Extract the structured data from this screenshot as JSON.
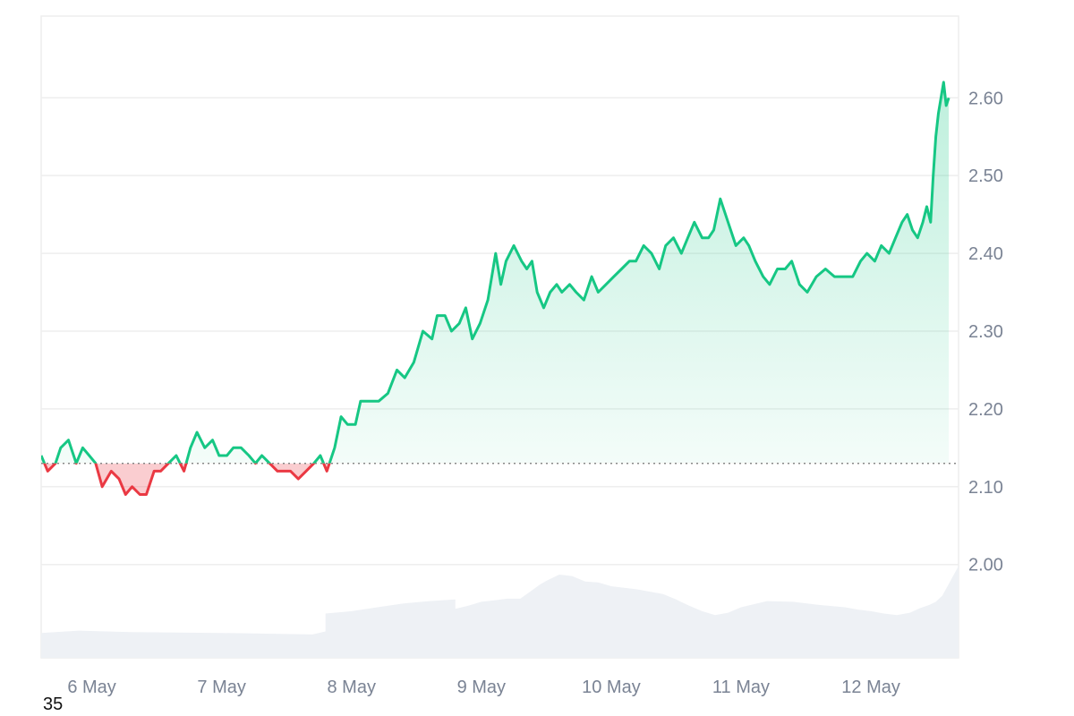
{
  "chart_data": {
    "type": "area",
    "baseline": 2.13,
    "ylim": [
      1.88,
      2.705
    ],
    "xlim": [
      5.61,
      12.675
    ],
    "x_unit": "day of May",
    "y_ticks": [
      "2.00",
      "2.10",
      "2.20",
      "2.30",
      "2.40",
      "2.50",
      "2.60"
    ],
    "x_ticks": [
      {
        "value": 6,
        "label": "6 May"
      },
      {
        "value": 7,
        "label": "7 May"
      },
      {
        "value": 8,
        "label": "8 May"
      },
      {
        "value": 9,
        "label": "9 May"
      },
      {
        "value": 10,
        "label": "10 May"
      },
      {
        "value": 11,
        "label": "11 May"
      },
      {
        "value": 12,
        "label": "12 May"
      }
    ],
    "grid": true,
    "colors": {
      "up": "#16c784",
      "down": "#ea3943",
      "volume": "#eef1f5",
      "grid": "#eeeeee",
      "baseline": "#888888"
    },
    "series": [
      {
        "type": "line",
        "x": [
          5.61,
          5.66,
          5.72,
          5.76,
          5.82,
          5.88,
          5.93,
          5.98,
          6.03,
          6.08,
          6.15,
          6.21,
          6.26,
          6.31,
          6.37,
          6.42,
          6.48,
          6.53,
          6.59,
          6.65,
          6.71,
          6.76,
          6.81,
          6.87,
          6.93,
          6.98,
          7.04,
          7.09,
          7.15,
          7.21,
          7.26,
          7.31,
          7.37,
          7.43,
          7.48,
          7.53,
          7.59,
          7.65,
          7.71,
          7.76,
          7.81,
          7.87,
          7.92,
          7.97,
          8.03,
          8.07,
          8.14,
          8.21,
          8.28,
          8.35,
          8.41,
          8.48,
          8.55,
          8.62,
          8.66,
          8.72,
          8.77,
          8.83,
          8.88,
          8.93,
          8.99,
          9.05,
          9.11,
          9.15,
          9.19,
          9.25,
          9.31,
          9.35,
          9.39,
          9.43,
          9.48,
          9.53,
          9.58,
          9.62,
          9.68,
          9.73,
          9.79,
          9.85,
          9.9,
          9.96,
          10.02,
          10.08,
          10.14,
          10.19,
          10.25,
          10.31,
          10.37,
          10.42,
          10.48,
          10.54,
          10.59,
          10.64,
          10.7,
          10.75,
          10.79,
          10.84,
          10.9,
          10.96,
          11.02,
          11.06,
          11.11,
          11.17,
          11.22,
          11.28,
          11.34,
          11.39,
          11.45,
          11.51,
          11.58,
          11.65,
          11.72,
          11.79,
          11.86,
          11.92,
          11.97,
          12.03,
          12.08,
          12.14,
          12.19,
          12.24,
          12.28,
          12.32,
          12.36,
          12.4,
          12.43,
          12.46,
          12.48,
          12.5,
          12.52,
          12.54,
          12.56,
          12.58,
          12.6
        ],
        "values": [
          2.14,
          2.12,
          2.13,
          2.15,
          2.16,
          2.13,
          2.15,
          2.14,
          2.13,
          2.1,
          2.12,
          2.11,
          2.09,
          2.1,
          2.09,
          2.09,
          2.12,
          2.12,
          2.13,
          2.14,
          2.12,
          2.15,
          2.17,
          2.15,
          2.16,
          2.14,
          2.14,
          2.15,
          2.15,
          2.14,
          2.13,
          2.14,
          2.13,
          2.12,
          2.12,
          2.12,
          2.11,
          2.12,
          2.13,
          2.14,
          2.12,
          2.15,
          2.19,
          2.18,
          2.18,
          2.21,
          2.21,
          2.21,
          2.22,
          2.25,
          2.24,
          2.26,
          2.3,
          2.29,
          2.32,
          2.32,
          2.3,
          2.31,
          2.33,
          2.29,
          2.31,
          2.34,
          2.4,
          2.36,
          2.39,
          2.41,
          2.39,
          2.38,
          2.39,
          2.35,
          2.33,
          2.35,
          2.36,
          2.35,
          2.36,
          2.35,
          2.34,
          2.37,
          2.35,
          2.36,
          2.37,
          2.38,
          2.39,
          2.39,
          2.41,
          2.4,
          2.38,
          2.41,
          2.42,
          2.4,
          2.42,
          2.44,
          2.42,
          2.42,
          2.43,
          2.47,
          2.44,
          2.41,
          2.42,
          2.41,
          2.39,
          2.37,
          2.36,
          2.38,
          2.38,
          2.39,
          2.36,
          2.35,
          2.37,
          2.38,
          2.37,
          2.37,
          2.37,
          2.39,
          2.4,
          2.39,
          2.41,
          2.4,
          2.42,
          2.44,
          2.45,
          2.43,
          2.42,
          2.44,
          2.46,
          2.44,
          2.5,
          2.55,
          2.58,
          2.6,
          2.62,
          2.59,
          2.6
        ]
      },
      {
        "type": "volume",
        "x": [
          5.61,
          5.9,
          6.3,
          7.0,
          7.7,
          7.8,
          7.8,
          8.0,
          8.2,
          8.4,
          8.6,
          8.8,
          8.8,
          8.9,
          9.0,
          9.1,
          9.2,
          9.3,
          9.4,
          9.45,
          9.5,
          9.6,
          9.7,
          9.8,
          9.9,
          10.0,
          10.1,
          10.2,
          10.3,
          10.4,
          10.5,
          10.6,
          10.7,
          10.8,
          10.9,
          11.0,
          11.2,
          11.4,
          11.6,
          11.8,
          11.9,
          12.0,
          12.1,
          12.2,
          12.3,
          12.38,
          12.45,
          12.5,
          12.55,
          12.6,
          12.675
        ],
        "values": [
          1.912,
          1.915,
          1.913,
          1.912,
          1.91,
          1.914,
          1.937,
          1.94,
          1.945,
          1.95,
          1.953,
          1.955,
          1.943,
          1.947,
          1.952,
          1.954,
          1.956,
          1.956,
          1.968,
          1.974,
          1.979,
          1.987,
          1.985,
          1.978,
          1.977,
          1.972,
          1.97,
          1.968,
          1.965,
          1.962,
          1.955,
          1.947,
          1.94,
          1.935,
          1.938,
          1.945,
          1.953,
          1.952,
          1.948,
          1.945,
          1.942,
          1.94,
          1.937,
          1.935,
          1.938,
          1.944,
          1.948,
          1.952,
          1.96,
          1.975,
          1.998
        ]
      }
    ],
    "corner_label": "35"
  }
}
